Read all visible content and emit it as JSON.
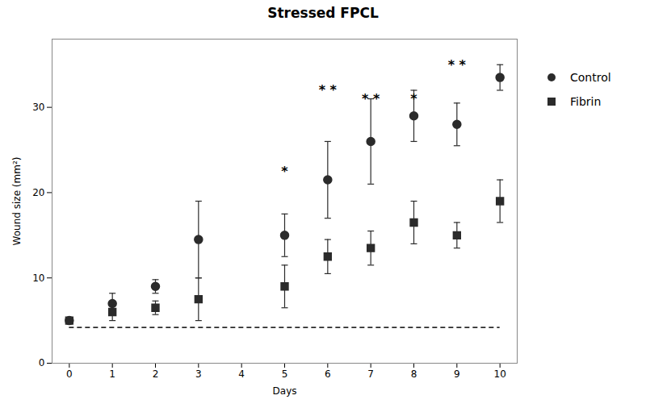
{
  "chart_data": {
    "type": "scatter",
    "title": "Stressed FPCL",
    "x_label": "Days",
    "y_label": "Wound size (mm²)",
    "x": [
      0,
      1,
      2,
      3,
      4,
      5,
      6,
      7,
      8,
      9,
      10
    ],
    "series": [
      {
        "name": "Control",
        "color": "#2b2b2b",
        "marker": "circle",
        "values": [
          5.0,
          7.0,
          9.0,
          14.5,
          null,
          15.0,
          21.5,
          26.0,
          29.0,
          28.0,
          33.5
        ],
        "errors": [
          0.3,
          1.2,
          0.8,
          4.5,
          null,
          2.5,
          4.5,
          5.0,
          3.0,
          2.5,
          1.5
        ]
      },
      {
        "name": "Fibrin",
        "color": "#2b2b2b",
        "marker": "square",
        "values": [
          5.0,
          6.0,
          6.5,
          7.5,
          null,
          9.0,
          12.5,
          13.5,
          16.5,
          15.0,
          19.0
        ],
        "errors": [
          0.3,
          1.0,
          0.8,
          2.5,
          null,
          2.5,
          2.0,
          2.0,
          2.5,
          1.5,
          2.5
        ]
      }
    ],
    "hline": {
      "y": 4.2,
      "xmin": 0,
      "xmax": 10,
      "line_style": "dashed",
      "color": "#2b2b2b"
    },
    "annotations": [
      {
        "x": 5,
        "y": 22.0,
        "text": "*"
      },
      {
        "x": 6,
        "y": 31.5,
        "text": "* *"
      },
      {
        "x": 7,
        "y": 30.5,
        "text": "* *"
      },
      {
        "x": 8,
        "y": 30.5,
        "text": "*"
      },
      {
        "x": 9,
        "y": 34.5,
        "text": "* *"
      }
    ],
    "xlim": [
      -0.4,
      10.4
    ],
    "xticks": [
      0,
      1,
      2,
      3,
      4,
      5,
      6,
      7,
      8,
      9,
      10
    ],
    "ylim": [
      0,
      38
    ],
    "yticks": [
      0,
      10,
      20,
      30
    ],
    "legend": "right",
    "grid": false
  }
}
